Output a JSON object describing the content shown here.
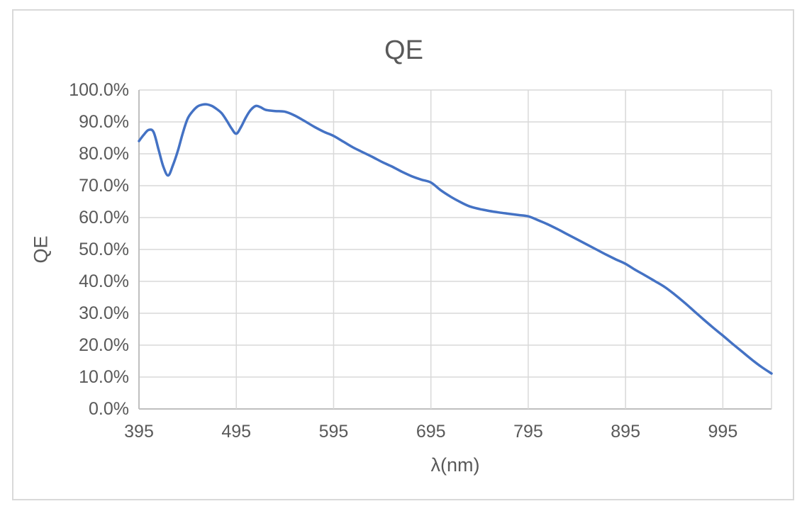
{
  "chart": {
    "title": "QE",
    "colors": {
      "line": "#4472C4",
      "gridline": "#D9D9D9",
      "axis_line": "#BFBFBF",
      "text": "#595959",
      "chart_border": "#D9D9D9"
    }
  },
  "chart_data": {
    "type": "line",
    "title": "QE",
    "xlabel": "λ(nm)",
    "ylabel": "QE",
    "xlim": [
      395,
      1045
    ],
    "ylim": [
      0,
      100
    ],
    "grid": true,
    "legend": "none",
    "x_ticks": [
      "395",
      "495",
      "595",
      "695",
      "795",
      "895",
      "995"
    ],
    "x_tick_values": [
      395,
      495,
      595,
      695,
      795,
      895,
      995
    ],
    "y_ticks": [
      "0.0%",
      "10.0%",
      "20.0%",
      "30.0%",
      "40.0%",
      "50.0%",
      "60.0%",
      "70.0%",
      "80.0%",
      "90.0%",
      "100.0%"
    ],
    "y_tick_values": [
      0,
      10,
      20,
      30,
      40,
      50,
      60,
      70,
      80,
      90,
      100
    ],
    "series": [
      {
        "name": "QE",
        "x": [
          395,
          400,
          405,
          410,
          415,
          420,
          425,
          430,
          435,
          440,
          445,
          450,
          455,
          460,
          465,
          470,
          475,
          480,
          485,
          490,
          495,
          500,
          505,
          510,
          515,
          520,
          525,
          535,
          545,
          555,
          565,
          575,
          585,
          595,
          605,
          615,
          625,
          635,
          645,
          655,
          665,
          675,
          685,
          695,
          705,
          715,
          725,
          735,
          745,
          755,
          765,
          775,
          785,
          795,
          805,
          815,
          825,
          835,
          845,
          855,
          865,
          875,
          885,
          895,
          905,
          915,
          925,
          935,
          945,
          955,
          965,
          975,
          985,
          995,
          1005,
          1015,
          1025,
          1035,
          1045
        ],
        "y": [
          84,
          86,
          87.5,
          86.8,
          81.5,
          76,
          73.2,
          76.5,
          81,
          86.5,
          91,
          93.3,
          94.8,
          95.4,
          95.5,
          95,
          94,
          92.7,
          90.5,
          88,
          86.3,
          88.5,
          91.5,
          93.8,
          95,
          94.6,
          93.8,
          93.4,
          93.2,
          92,
          90.3,
          88.5,
          86.9,
          85.6,
          83.8,
          82,
          80.5,
          79,
          77.4,
          76,
          74.4,
          73,
          71.9,
          71,
          68.6,
          66.6,
          64.9,
          63.5,
          62.7,
          62.1,
          61.6,
          61.2,
          60.8,
          60.4,
          59.2,
          57.9,
          56.4,
          54.8,
          53.2,
          51.6,
          50,
          48.4,
          46.9,
          45.5,
          43.6,
          41.9,
          40.1,
          38.3,
          36,
          33.5,
          30.8,
          28.1,
          25.5,
          23,
          20.4,
          17.9,
          15.4,
          13.1,
          11.1
        ]
      }
    ]
  }
}
